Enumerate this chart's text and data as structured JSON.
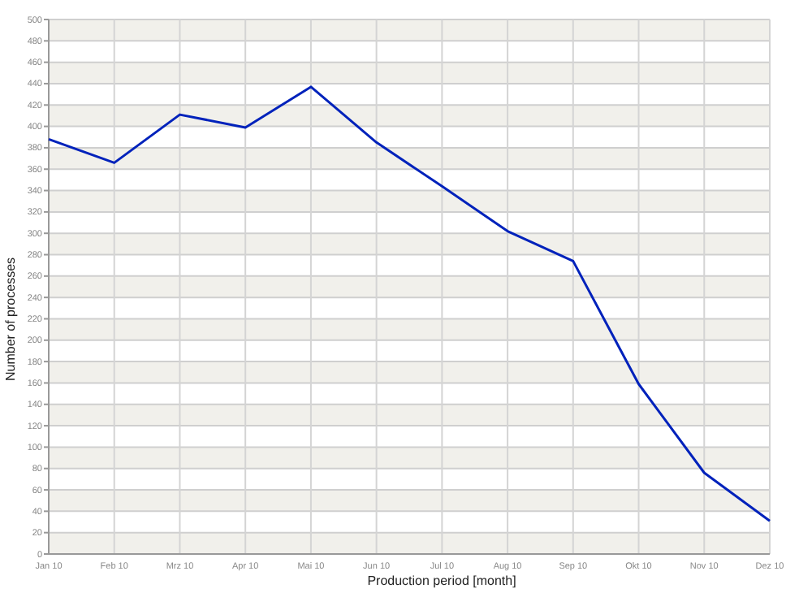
{
  "chart_data": {
    "type": "line",
    "xlabel": "Production period [month]",
    "ylabel": "Number of processes",
    "categories": [
      "Jan 10",
      "Feb 10",
      "Mrz 10",
      "Apr 10",
      "Mai 10",
      "Jun 10",
      "Jul 10",
      "Aug 10",
      "Sep 10",
      "Okt 10",
      "Nov 10",
      "Dez 10"
    ],
    "series": [
      {
        "color": "#0022bb",
        "values": [
          388,
          366,
          411,
          399,
          437,
          385,
          344,
          302,
          274,
          159,
          76,
          31
        ]
      }
    ],
    "ylim": [
      0,
      500
    ],
    "yticks": [
      0,
      20,
      40,
      60,
      80,
      100,
      120,
      140,
      160,
      180,
      200,
      220,
      240,
      260,
      280,
      300,
      320,
      340,
      360,
      380,
      400,
      420,
      440,
      460,
      480,
      500
    ],
    "grid": true,
    "marker": "none",
    "line_style": "solid"
  }
}
